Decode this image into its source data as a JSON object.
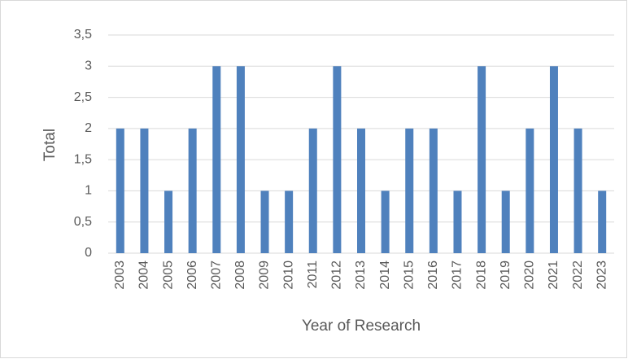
{
  "chart_data": {
    "type": "bar",
    "x_label": "Year of Research",
    "y_label": "Total",
    "categories": [
      "2003",
      "2004",
      "2005",
      "2006",
      "2007",
      "2008",
      "2009",
      "2010",
      "2011",
      "2012",
      "2013",
      "2014",
      "2015",
      "2016",
      "2017",
      "2018",
      "2019",
      "2020",
      "2021",
      "2022",
      "2023"
    ],
    "values": [
      2,
      2,
      1,
      2,
      3,
      3,
      1,
      1,
      2,
      3,
      2,
      1,
      2,
      2,
      1,
      3,
      1,
      2,
      3,
      2,
      1
    ],
    "color": "#4f81bd",
    "ylim": [
      0,
      3.5
    ],
    "yticks": [
      0,
      {
        "value": 0.5,
        "label": "0,5"
      },
      1,
      {
        "value": 1.5,
        "label": "1,5"
      },
      2,
      {
        "value": 2.5,
        "label": "2,5"
      },
      3,
      {
        "value": 3.5,
        "label": "3,5"
      }
    ],
    "grid": true
  }
}
